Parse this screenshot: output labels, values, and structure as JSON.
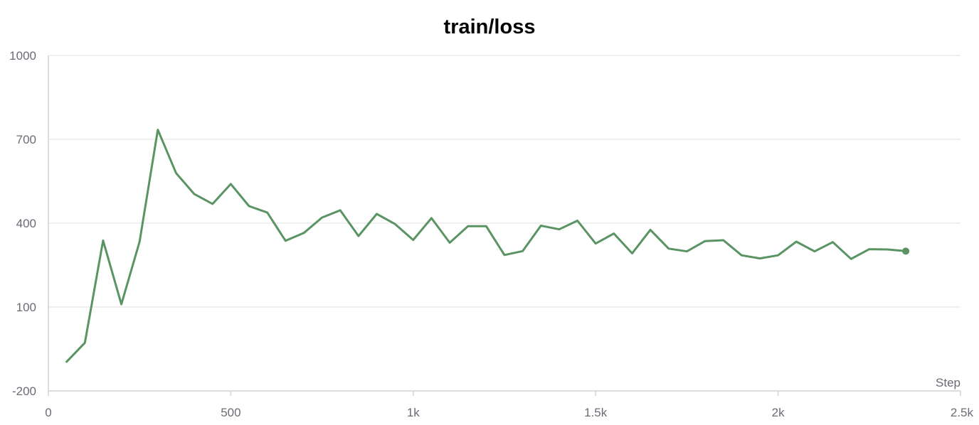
{
  "chart_data": {
    "type": "line",
    "title": "train/loss",
    "xlabel": "Step",
    "ylabel": "",
    "xlim": [
      0,
      2500
    ],
    "ylim": [
      -200,
      1000
    ],
    "xticks": [
      0,
      500,
      1000,
      1500,
      2000,
      2500
    ],
    "xtick_labels": [
      "0",
      "500",
      "1k",
      "1.5k",
      "2k",
      "2.5k"
    ],
    "yticks": [
      -200,
      100,
      400,
      700,
      1000
    ],
    "ytick_labels": [
      "-200",
      "100",
      "400",
      "700",
      "1000"
    ],
    "grid": true,
    "series": [
      {
        "color": "#5a9463",
        "x": [
          50,
          100,
          150,
          200,
          250,
          300,
          350,
          400,
          450,
          500,
          550,
          600,
          650,
          700,
          750,
          800,
          850,
          900,
          950,
          1000,
          1050,
          1100,
          1150,
          1200,
          1250,
          1300,
          1350,
          1400,
          1450,
          1500,
          1550,
          1600,
          1650,
          1700,
          1750,
          1800,
          1850,
          1900,
          1950,
          2000,
          2050,
          2100,
          2150,
          2200,
          2250,
          2300,
          2350
        ],
        "y": [
          -96,
          -28,
          338,
          110,
          334,
          734,
          579,
          504,
          469,
          540,
          461,
          438,
          337,
          365,
          420,
          446,
          354,
          433,
          397,
          340,
          418,
          330,
          389,
          389,
          286,
          300,
          391,
          378,
          409,
          327,
          363,
          292,
          376,
          309,
          299,
          336,
          339,
          285,
          274,
          285,
          334,
          299,
          332,
          272,
          307,
          306,
          300
        ]
      }
    ]
  }
}
